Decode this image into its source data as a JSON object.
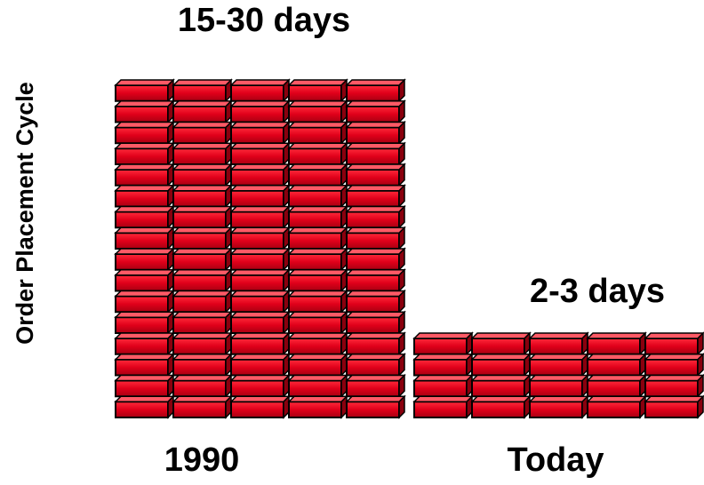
{
  "y_axis_label": "Order Placement Cycle",
  "columns": [
    {
      "label": "1990",
      "annotation": "15-30 days"
    },
    {
      "label": "Today",
      "annotation": "2-3 days"
    }
  ]
}
